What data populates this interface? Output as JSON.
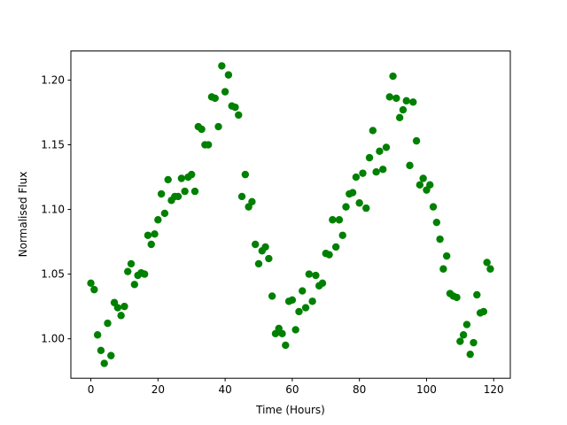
{
  "chart_data": {
    "type": "scatter",
    "xlabel": "Time (Hours)",
    "ylabel": "Normalised Flux",
    "color": "#008000",
    "grid": false,
    "x": [
      0,
      1,
      2,
      3,
      4,
      5,
      6,
      7,
      8,
      9,
      10,
      11,
      12,
      13,
      14,
      15,
      16,
      17,
      18,
      19,
      20,
      21,
      22,
      23,
      24,
      25,
      26,
      27,
      28,
      29,
      30,
      31,
      32,
      33,
      34,
      35,
      36,
      37,
      38,
      39,
      40,
      41,
      42,
      43,
      44,
      45,
      46,
      47,
      48,
      49,
      50,
      51,
      52,
      53,
      54,
      55,
      56,
      57,
      58,
      59,
      60,
      61,
      62,
      63,
      64,
      65,
      66,
      67,
      68,
      69,
      70,
      71,
      72,
      73,
      74,
      75,
      76,
      77,
      78,
      79,
      80,
      81,
      82,
      83,
      84,
      85,
      86,
      87,
      88,
      89,
      90,
      91,
      92,
      93,
      94,
      95,
      96,
      97,
      98,
      99,
      100,
      101,
      102,
      103,
      104,
      105,
      106,
      107,
      108,
      109,
      110,
      111,
      112,
      113,
      114,
      115,
      116,
      117,
      118,
      119
    ],
    "values": [
      1.043,
      1.038,
      1.003,
      0.991,
      0.981,
      1.012,
      0.987,
      1.028,
      1.024,
      1.018,
      1.025,
      1.052,
      1.058,
      1.042,
      1.049,
      1.051,
      1.05,
      1.08,
      1.073,
      1.081,
      1.092,
      1.112,
      1.097,
      1.123,
      1.107,
      1.11,
      1.11,
      1.124,
      1.114,
      1.125,
      1.127,
      1.114,
      1.164,
      1.162,
      1.15,
      1.15,
      1.187,
      1.186,
      1.164,
      1.211,
      1.191,
      1.204,
      1.18,
      1.179,
      1.173,
      1.11,
      1.127,
      1.102,
      1.106,
      1.073,
      1.058,
      1.068,
      1.071,
      1.062,
      1.033,
      1.004,
      1.008,
      1.004,
      0.995,
      1.029,
      1.03,
      1.007,
      1.021,
      1.037,
      1.024,
      1.05,
      1.029,
      1.049,
      1.041,
      1.043,
      1.066,
      1.065,
      1.092,
      1.071,
      1.092,
      1.08,
      1.102,
      1.112,
      1.113,
      1.125,
      1.105,
      1.128,
      1.101,
      1.14,
      1.161,
      1.129,
      1.145,
      1.131,
      1.148,
      1.187,
      1.203,
      1.186,
      1.171,
      1.177,
      1.184,
      1.134,
      1.183,
      1.153,
      1.119,
      1.124,
      1.115,
      1.119,
      1.102,
      1.09,
      1.077,
      1.054,
      1.064,
      1.035,
      1.033,
      1.032,
      0.998,
      1.003,
      1.011,
      0.988,
      0.997,
      1.034,
      1.02,
      1.021,
      1.059,
      1.054
    ],
    "xlim": [
      -5.95,
      124.95
    ],
    "xticks": [
      0,
      20,
      40,
      60,
      80,
      100,
      120
    ],
    "ylim": [
      0.9695,
      1.2225
    ],
    "yticks": [
      {
        "value": 1.0,
        "label": "1.00"
      },
      {
        "value": 1.05,
        "label": "1.05"
      },
      {
        "value": 1.1,
        "label": "1.10"
      },
      {
        "value": 1.15,
        "label": "1.15"
      },
      {
        "value": 1.2,
        "label": "1.20"
      }
    ]
  }
}
